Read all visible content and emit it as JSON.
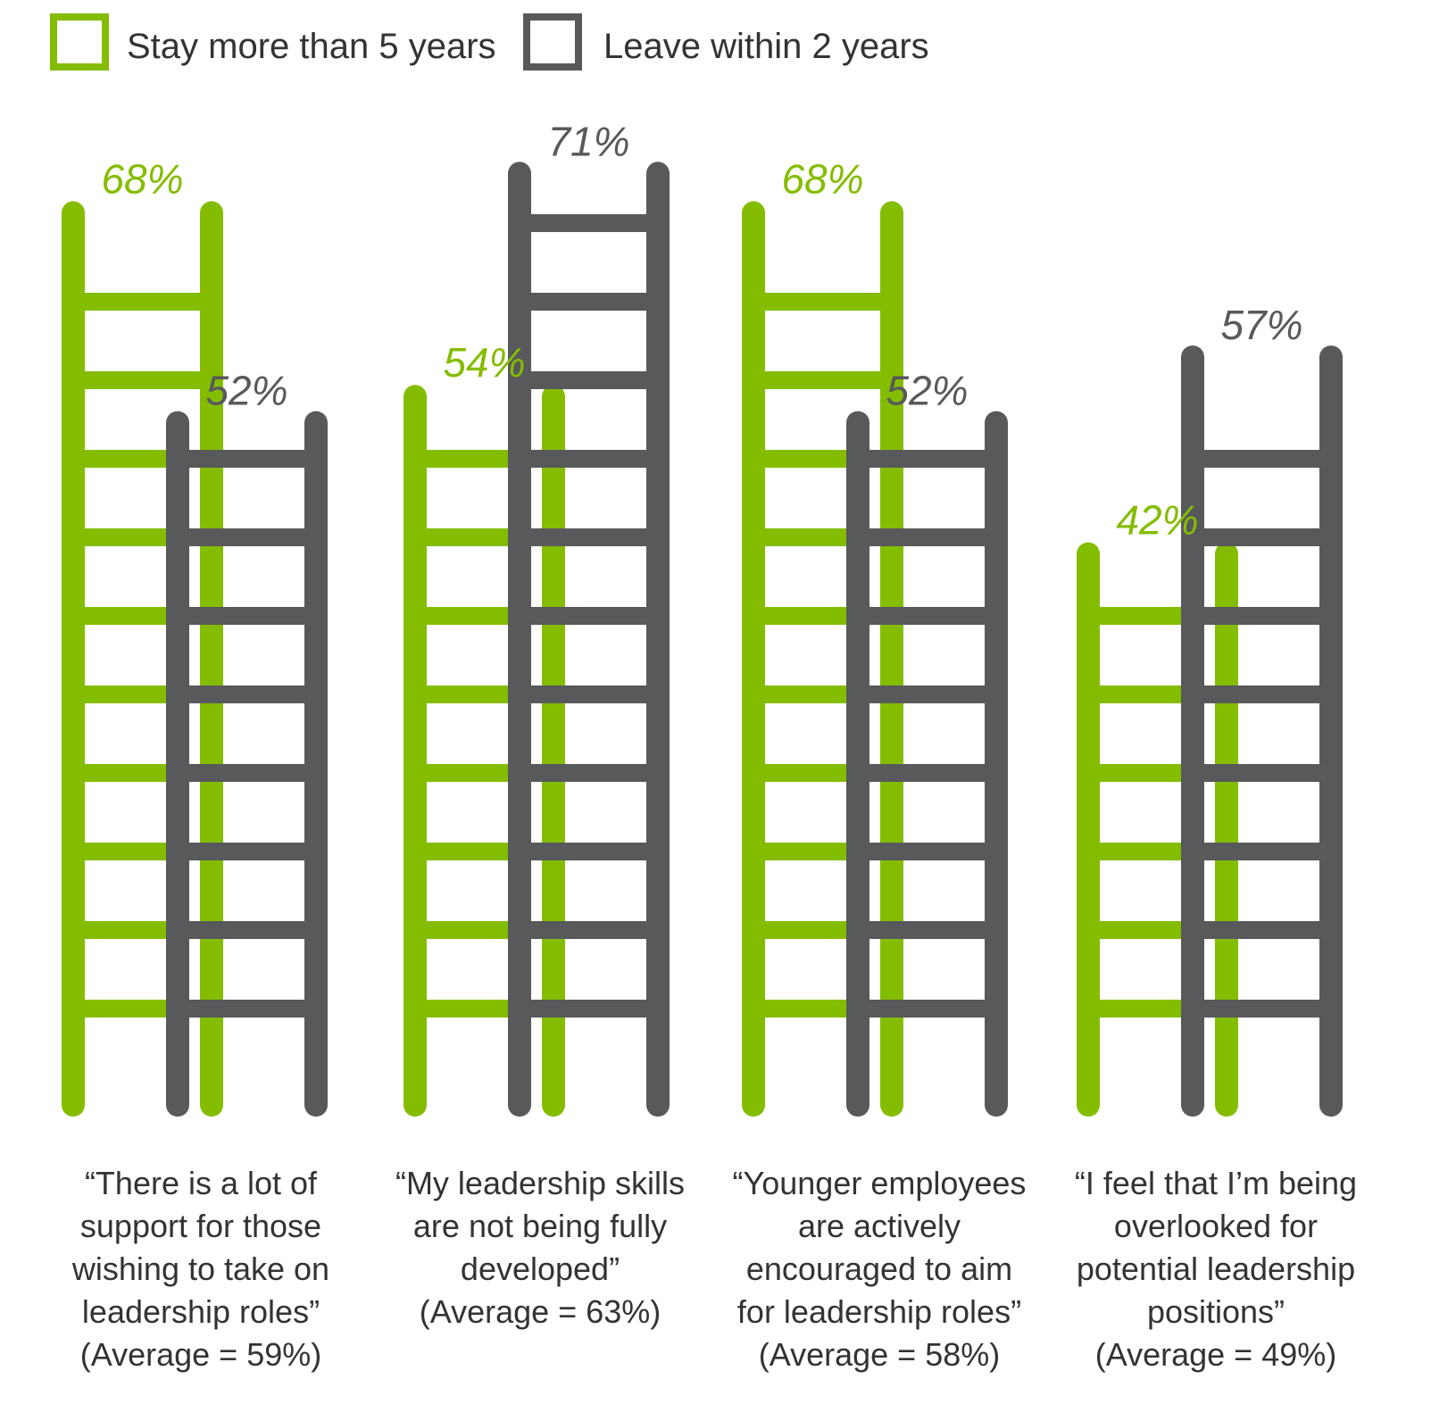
{
  "legend": {
    "stay_label": "Stay more than 5 years",
    "leave_label": "Leave within 2 years"
  },
  "colors": {
    "stay": "#84bd00",
    "leave": "#58595b",
    "text": "#333333"
  },
  "chart_data": {
    "type": "bar",
    "style": "ladder pictograph",
    "legend_position": "top-left",
    "grid": false,
    "ylim": [
      0,
      75
    ],
    "categories": [
      [
        "“There is a lot of",
        "support for those",
        "wishing to take on",
        "leadership roles”",
        "(Average = 59%)"
      ],
      [
        "“My leadership skills",
        "are not being fully",
        "developed”",
        "(Average = 63%)"
      ],
      [
        "“Younger employees",
        "are actively",
        "encouraged to aim",
        "for leadership roles”",
        "(Average = 58%)"
      ],
      [
        "“I feel that I’m being",
        "overlooked for",
        "potential leadership",
        "positions”",
        "(Average = 49%)"
      ]
    ],
    "series": [
      {
        "name": "Stay more than 5 years",
        "values": [
          68,
          54,
          68,
          42
        ],
        "labels": [
          "68%",
          "54%",
          "68%",
          "42%"
        ]
      },
      {
        "name": "Leave within 2 years",
        "values": [
          52,
          71,
          52,
          57
        ],
        "labels": [
          "52%",
          "71%",
          "52%",
          "57%"
        ]
      }
    ]
  }
}
